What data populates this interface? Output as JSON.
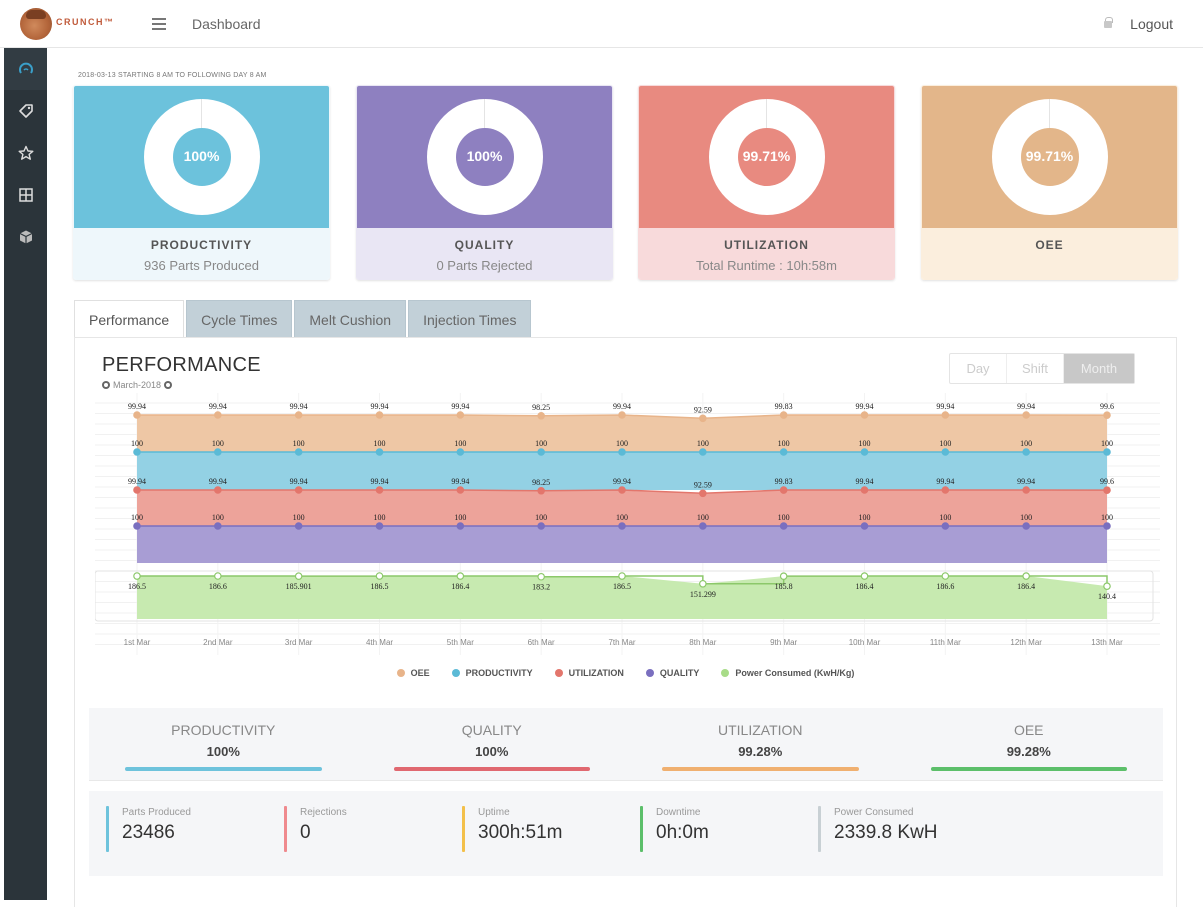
{
  "header": {
    "brand": "CRUNCH™",
    "breadcrumb": "Dashboard",
    "logout_label": "Logout"
  },
  "sidebar": {
    "items": [
      {
        "icon": "dashboard-gauge-icon",
        "active": true
      },
      {
        "icon": "tag-icon",
        "active": false
      },
      {
        "icon": "star-icon",
        "active": false
      },
      {
        "icon": "grid-icon",
        "active": false
      },
      {
        "icon": "cube-icon",
        "active": false
      }
    ]
  },
  "date_range": "2018-03-13 STARTING 8 AM TO FOLLOWING DAY 8 AM",
  "kpis": [
    {
      "title": "PRODUCTIVITY",
      "subtitle": "936 Parts Produced",
      "value": "100%",
      "percent": 100,
      "color": "#6cc2dc",
      "light": "#eef7fb"
    },
    {
      "title": "QUALITY",
      "subtitle": "0 Parts Rejected",
      "value": "100%",
      "percent": 100,
      "color": "#8e80c0",
      "light": "#e9e6f4"
    },
    {
      "title": "UTILIZATION",
      "subtitle": "Total Runtime : 10h:58m",
      "value": "99.71%",
      "percent": 99.71,
      "color": "#e88a80",
      "light": "#f8dadb"
    },
    {
      "title": "OEE",
      "subtitle": "",
      "value": "99.71%",
      "percent": 99.71,
      "color": "#e3b68a",
      "light": "#fbeedd"
    }
  ],
  "tabs": [
    {
      "label": "Performance",
      "active": true
    },
    {
      "label": "Cycle Times",
      "active": false
    },
    {
      "label": "Melt Cushion",
      "active": false
    },
    {
      "label": "Injection Times",
      "active": false
    }
  ],
  "performance": {
    "title": "PERFORMANCE",
    "period": "March-2018",
    "range_buttons": [
      {
        "label": "Day",
        "active": false
      },
      {
        "label": "Shift",
        "active": false
      },
      {
        "label": "Month",
        "active": true
      }
    ]
  },
  "chart_data": {
    "type": "area",
    "categories": [
      "1st Mar",
      "2nd Mar",
      "3rd Mar",
      "4th Mar",
      "5th Mar",
      "6th Mar",
      "7th Mar",
      "8th Mar",
      "9th Mar",
      "10th Mar",
      "11th Mar",
      "12th Mar",
      "13th Mar"
    ],
    "series": [
      {
        "name": "OEE",
        "color": "#e8b48a",
        "fill": "#eec7a5",
        "values": [
          99.94,
          99.94,
          99.94,
          99.94,
          99.94,
          98.25,
          99.94,
          92.59,
          99.83,
          99.94,
          99.94,
          99.94,
          99.6
        ]
      },
      {
        "name": "PRODUCTIVITY",
        "color": "#5bbad6",
        "fill": "#93d1e4",
        "values": [
          100,
          100,
          100,
          100,
          100,
          100,
          100,
          100,
          100,
          100,
          100,
          100,
          100
        ]
      },
      {
        "name": "UTILIZATION",
        "color": "#e3766c",
        "fill": "#eda39a",
        "values": [
          99.94,
          99.94,
          99.94,
          99.94,
          99.94,
          98.25,
          99.94,
          92.59,
          99.83,
          99.94,
          99.94,
          99.94,
          99.6
        ]
      },
      {
        "name": "QUALITY",
        "color": "#7a6fbf",
        "fill": "#a89dd4",
        "values": [
          100,
          100,
          100,
          100,
          100,
          100,
          100,
          100,
          100,
          100,
          100,
          100,
          100
        ]
      },
      {
        "name": "Power Consumed (KwH/Kg)",
        "color": "#8cc86a",
        "fill": "#c7eab0",
        "values": [
          186.5,
          186.6,
          185.901,
          186.5,
          186.4,
          183.2,
          186.5,
          151.299,
          185.8,
          186.4,
          186.6,
          186.4,
          140.4
        ]
      }
    ],
    "legend": "bottom",
    "title": "",
    "xlabel": "",
    "ylabel": "",
    "grid": true
  },
  "summary": [
    {
      "label": "PRODUCTIVITY",
      "value": "100%",
      "color": "#6ec3dc"
    },
    {
      "label": "QUALITY",
      "value": "100%",
      "color": "#e06870"
    },
    {
      "label": "UTILIZATION",
      "value": "99.28%",
      "color": "#f0b070"
    },
    {
      "label": "OEE",
      "value": "99.28%",
      "color": "#5cbf6a"
    }
  ],
  "stats": [
    {
      "label": "Parts Produced",
      "value": "23486",
      "color": "#6ec3dc"
    },
    {
      "label": "Rejections",
      "value": "0",
      "color": "#ef8a8e"
    },
    {
      "label": "Uptime",
      "value": "300h:51m",
      "color": "#f3c04a"
    },
    {
      "label": "Downtime",
      "value": "0h:0m",
      "color": "#5cbf6a"
    },
    {
      "label": "Power Consumed",
      "value": "2339.8 KwH",
      "color": "#c8d0d4"
    }
  ]
}
